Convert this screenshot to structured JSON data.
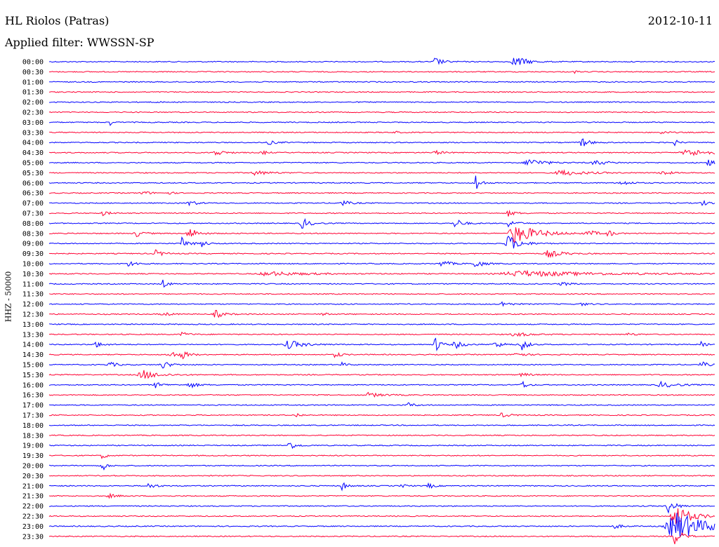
{
  "header": {
    "station": "HL Riolos (Patras)",
    "date": "2012-10-11",
    "filter_label": "Applied filter: WWSSN-SP"
  },
  "chart_data": {
    "type": "line",
    "title": "HL Riolos (Patras)",
    "subtitle": "Applied filter: WWSSN-SP",
    "ylabel": "HHZ - 50000",
    "xlabel": "",
    "grid": false,
    "colors": [
      "#0000ff",
      "#ff0033"
    ],
    "x_range_minutes": [
      0,
      30
    ],
    "rows": [
      {
        "label": "00:00",
        "events": [
          {
            "x": 0.58,
            "amp": 6,
            "w": 0.01
          },
          {
            "x": 0.7,
            "amp": 9,
            "w": 0.015
          }
        ]
      },
      {
        "label": "00:30",
        "events": [
          {
            "x": 0.79,
            "amp": 2,
            "w": 0.004
          }
        ]
      },
      {
        "label": "01:00",
        "events": []
      },
      {
        "label": "01:30",
        "events": []
      },
      {
        "label": "02:00",
        "events": [
          {
            "x": 0.16,
            "amp": 2,
            "w": 0.004
          }
        ]
      },
      {
        "label": "02:30",
        "events": []
      },
      {
        "label": "03:00",
        "events": [
          {
            "x": 0.09,
            "amp": 12,
            "w": 0.002
          }
        ]
      },
      {
        "label": "03:30",
        "events": [
          {
            "x": 0.52,
            "amp": 2,
            "w": 0.004
          },
          {
            "x": 0.92,
            "amp": 2,
            "w": 0.01
          }
        ]
      },
      {
        "label": "04:00",
        "events": [
          {
            "x": 0.33,
            "amp": 3,
            "w": 0.01
          },
          {
            "x": 0.8,
            "amp": 7,
            "w": 0.01
          },
          {
            "x": 0.94,
            "amp": 4,
            "w": 0.006
          }
        ]
      },
      {
        "label": "04:30",
        "events": [
          {
            "x": 0.25,
            "amp": 5,
            "w": 0.01
          },
          {
            "x": 0.32,
            "amp": 4,
            "w": 0.006
          },
          {
            "x": 0.58,
            "amp": 3,
            "w": 0.01
          },
          {
            "x": 0.96,
            "amp": 5,
            "w": 0.03
          }
        ]
      },
      {
        "label": "05:00",
        "events": [
          {
            "x": 0.72,
            "amp": 6,
            "w": 0.02
          },
          {
            "x": 0.82,
            "amp": 4,
            "w": 0.015
          },
          {
            "x": 0.99,
            "amp": 5,
            "w": 0.008
          }
        ]
      },
      {
        "label": "05:30",
        "events": [
          {
            "x": 0.31,
            "amp": 3,
            "w": 0.02
          },
          {
            "x": 0.77,
            "amp": 4,
            "w": 0.03
          },
          {
            "x": 0.92,
            "amp": 4,
            "w": 0.01
          }
        ]
      },
      {
        "label": "06:00",
        "events": [
          {
            "x": 0.64,
            "amp": 16,
            "w": 0.006
          },
          {
            "x": 0.86,
            "amp": 4,
            "w": 0.01
          }
        ]
      },
      {
        "label": "06:30",
        "events": [
          {
            "x": 0.14,
            "amp": 3,
            "w": 0.01
          },
          {
            "x": 0.18,
            "amp": 2,
            "w": 0.006
          }
        ]
      },
      {
        "label": "07:00",
        "events": [
          {
            "x": 0.21,
            "amp": 4,
            "w": 0.01
          },
          {
            "x": 0.44,
            "amp": 4,
            "w": 0.01
          },
          {
            "x": 0.98,
            "amp": 4,
            "w": 0.01
          }
        ]
      },
      {
        "label": "07:30",
        "events": [
          {
            "x": 0.08,
            "amp": 3,
            "w": 0.01
          },
          {
            "x": 0.69,
            "amp": 4,
            "w": 0.01
          }
        ]
      },
      {
        "label": "08:00",
        "events": [
          {
            "x": 0.38,
            "amp": 8,
            "w": 0.01
          },
          {
            "x": 0.61,
            "amp": 7,
            "w": 0.01
          },
          {
            "x": 0.69,
            "amp": 5,
            "w": 0.01
          }
        ]
      },
      {
        "label": "08:30",
        "events": [
          {
            "x": 0.13,
            "amp": 5,
            "w": 0.01
          },
          {
            "x": 0.21,
            "amp": 10,
            "w": 0.01
          },
          {
            "x": 0.7,
            "amp": 14,
            "w": 0.03
          },
          {
            "x": 0.81,
            "amp": 5,
            "w": 0.01
          },
          {
            "x": 0.84,
            "amp": 6,
            "w": 0.006
          }
        ]
      },
      {
        "label": "09:00",
        "events": [
          {
            "x": 0.2,
            "amp": 9,
            "w": 0.008
          },
          {
            "x": 0.23,
            "amp": 5,
            "w": 0.006
          },
          {
            "x": 0.69,
            "amp": 12,
            "w": 0.015
          }
        ]
      },
      {
        "label": "09:30",
        "events": [
          {
            "x": 0.16,
            "amp": 5,
            "w": 0.01
          },
          {
            "x": 0.75,
            "amp": 5,
            "w": 0.02
          }
        ]
      },
      {
        "label": "10:00",
        "events": [
          {
            "x": 0.12,
            "amp": 4,
            "w": 0.01
          },
          {
            "x": 0.59,
            "amp": 6,
            "w": 0.01
          },
          {
            "x": 0.64,
            "amp": 6,
            "w": 0.01
          }
        ]
      },
      {
        "label": "10:30",
        "events": [
          {
            "x": 0.33,
            "amp": 3,
            "w": 0.05
          },
          {
            "x": 0.71,
            "amp": 4,
            "w": 0.1
          }
        ]
      },
      {
        "label": "11:00",
        "events": [
          {
            "x": 0.17,
            "amp": 8,
            "w": 0.006
          },
          {
            "x": 0.77,
            "amp": 3,
            "w": 0.01
          }
        ]
      },
      {
        "label": "11:30",
        "events": []
      },
      {
        "label": "12:00",
        "events": [
          {
            "x": 0.68,
            "amp": 4,
            "w": 0.01
          },
          {
            "x": 0.8,
            "amp": 2,
            "w": 0.01
          }
        ]
      },
      {
        "label": "12:30",
        "events": [
          {
            "x": 0.17,
            "amp": 3,
            "w": 0.01
          },
          {
            "x": 0.25,
            "amp": 6,
            "w": 0.01
          },
          {
            "x": 0.41,
            "amp": 3,
            "w": 0.006
          }
        ]
      },
      {
        "label": "13:00",
        "events": []
      },
      {
        "label": "13:30",
        "events": [
          {
            "x": 0.2,
            "amp": 3,
            "w": 0.01
          },
          {
            "x": 0.7,
            "amp": 3,
            "w": 0.02
          },
          {
            "x": 0.87,
            "amp": 2,
            "w": 0.01
          }
        ]
      },
      {
        "label": "14:00",
        "events": [
          {
            "x": 0.07,
            "amp": 4,
            "w": 0.01
          },
          {
            "x": 0.36,
            "amp": 6,
            "w": 0.02
          },
          {
            "x": 0.58,
            "amp": 14,
            "w": 0.006
          },
          {
            "x": 0.61,
            "amp": 6,
            "w": 0.01
          },
          {
            "x": 0.67,
            "amp": 5,
            "w": 0.01
          },
          {
            "x": 0.71,
            "amp": 14,
            "w": 0.006
          },
          {
            "x": 0.98,
            "amp": 4,
            "w": 0.006
          }
        ]
      },
      {
        "label": "14:30",
        "events": [
          {
            "x": 0.18,
            "amp": 6,
            "w": 0.01
          },
          {
            "x": 0.2,
            "amp": 5,
            "w": 0.01
          },
          {
            "x": 0.43,
            "amp": 6,
            "w": 0.006
          },
          {
            "x": 0.7,
            "amp": 5,
            "w": 0.01
          }
        ]
      },
      {
        "label": "15:00",
        "events": [
          {
            "x": 0.09,
            "amp": 4,
            "w": 0.01
          },
          {
            "x": 0.17,
            "amp": 6,
            "w": 0.01
          },
          {
            "x": 0.44,
            "amp": 3,
            "w": 0.006
          },
          {
            "x": 0.98,
            "amp": 4,
            "w": 0.01
          }
        ]
      },
      {
        "label": "15:30",
        "events": [
          {
            "x": 0.14,
            "amp": 7,
            "w": 0.02
          },
          {
            "x": 0.71,
            "amp": 3,
            "w": 0.01
          }
        ]
      },
      {
        "label": "16:00",
        "events": [
          {
            "x": 0.16,
            "amp": 4,
            "w": 0.01
          },
          {
            "x": 0.21,
            "amp": 5,
            "w": 0.01
          },
          {
            "x": 0.71,
            "amp": 7,
            "w": 0.006
          },
          {
            "x": 0.92,
            "amp": 4,
            "w": 0.02
          }
        ]
      },
      {
        "label": "16:30",
        "events": [
          {
            "x": 0.48,
            "amp": 3,
            "w": 0.02
          }
        ]
      },
      {
        "label": "17:00",
        "events": [
          {
            "x": 0.54,
            "amp": 3,
            "w": 0.01
          }
        ]
      },
      {
        "label": "17:30",
        "events": [
          {
            "x": 0.37,
            "amp": 4,
            "w": 0.006
          },
          {
            "x": 0.68,
            "amp": 3,
            "w": 0.01
          }
        ]
      },
      {
        "label": "18:00",
        "events": []
      },
      {
        "label": "18:30",
        "events": []
      },
      {
        "label": "19:00",
        "events": [
          {
            "x": 0.36,
            "amp": 6,
            "w": 0.01
          }
        ]
      },
      {
        "label": "19:30",
        "events": [
          {
            "x": 0.08,
            "amp": 8,
            "w": 0.004
          }
        ]
      },
      {
        "label": "20:00",
        "events": [
          {
            "x": 0.08,
            "amp": 14,
            "w": 0.004
          }
        ]
      },
      {
        "label": "20:30",
        "events": []
      },
      {
        "label": "21:00",
        "events": [
          {
            "x": 0.15,
            "amp": 4,
            "w": 0.01
          },
          {
            "x": 0.44,
            "amp": 7,
            "w": 0.006
          },
          {
            "x": 0.53,
            "amp": 3,
            "w": 0.006
          },
          {
            "x": 0.57,
            "amp": 5,
            "w": 0.006
          }
        ]
      },
      {
        "label": "21:30",
        "events": [
          {
            "x": 0.09,
            "amp": 3,
            "w": 0.01
          }
        ]
      },
      {
        "label": "22:00",
        "events": [
          {
            "x": 0.93,
            "amp": 10,
            "w": 0.01
          }
        ]
      },
      {
        "label": "22:30",
        "events": [
          {
            "x": 0.94,
            "amp": 18,
            "w": 0.02
          }
        ]
      },
      {
        "label": "23:00",
        "events": [
          {
            "x": 0.85,
            "amp": 3,
            "w": 0.01
          },
          {
            "x": 0.94,
            "amp": 22,
            "w": 0.04
          }
        ]
      },
      {
        "label": "23:30",
        "events": [
          {
            "x": 0.94,
            "amp": 12,
            "w": 0.01
          }
        ]
      }
    ]
  }
}
